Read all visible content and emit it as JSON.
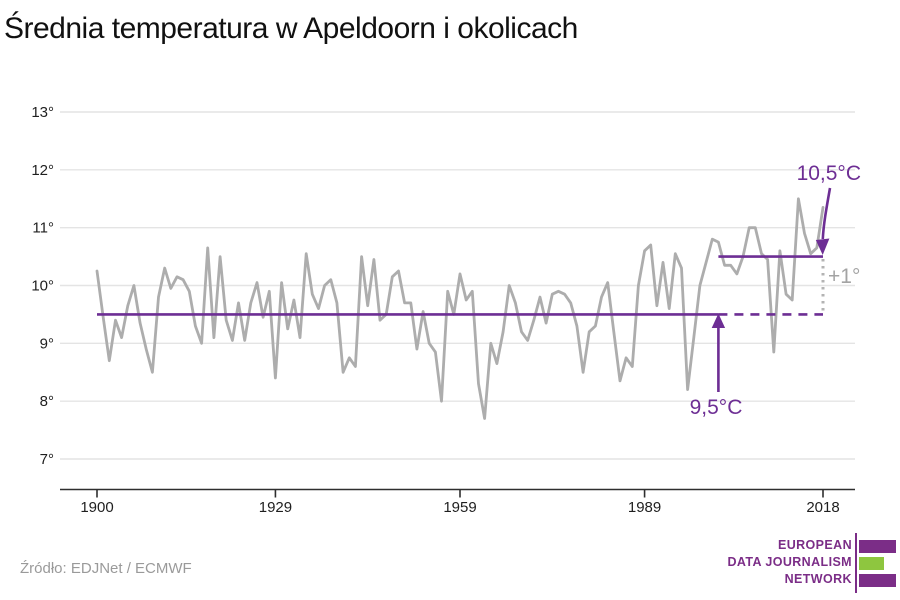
{
  "title": "Średnia temperatura w Apeldoorn i okolicach",
  "source": "Źródło: EDJNet / ECMWF",
  "annotations": {
    "avg_recent_label": "10,5°C",
    "avg_past_label": "9,5°C",
    "delta_label": "+1°"
  },
  "logo": {
    "line1": "EUROPEAN",
    "line2": "DATA JOURNALISM",
    "line3": "NETWORK"
  },
  "colors": {
    "purple": "#6d2e94",
    "series_gray": "#adadad",
    "dotted_gray": "#b3b3b3",
    "annotation_gray": "#a3a3a3",
    "grid": "#e4e4e4",
    "axis": "#2e2e2e",
    "tick_text": "#1f1f1f",
    "logo_purple": "#7b2d87",
    "logo_green": "#8ec63f"
  },
  "chart_data": {
    "type": "line",
    "title": "Średnia temperatura w Apeldoorn i okolicach",
    "xlabel": "",
    "ylabel": "",
    "unit": "°C",
    "grid": true,
    "legend": false,
    "ylim": [
      7,
      13
    ],
    "xlim": [
      1900,
      2018
    ],
    "ytick_values": [
      13,
      12,
      11,
      10,
      9,
      8,
      7
    ],
    "ytick_labels": [
      "13°",
      "12°",
      "11°",
      "10°",
      "9°",
      "8°",
      "7°"
    ],
    "xtick_values": [
      1900,
      1929,
      1959,
      1989,
      2018
    ],
    "xtick_labels": [
      "1900",
      "1929",
      "1959",
      "1989",
      "2018"
    ],
    "start_year": 1900,
    "end_year": 2018,
    "values": [
      10.25,
      9.45,
      8.7,
      9.4,
      9.1,
      9.65,
      10.0,
      9.35,
      8.9,
      8.5,
      9.8,
      10.3,
      9.95,
      10.15,
      10.1,
      9.9,
      9.3,
      9.0,
      10.65,
      9.1,
      10.5,
      9.4,
      9.05,
      9.7,
      9.05,
      9.7,
      10.05,
      9.45,
      9.9,
      8.4,
      10.05,
      9.25,
      9.75,
      9.1,
      10.55,
      9.85,
      9.6,
      10.0,
      10.1,
      9.7,
      8.5,
      8.75,
      8.6,
      10.5,
      9.65,
      10.45,
      9.4,
      9.5,
      10.15,
      10.25,
      9.7,
      9.7,
      8.9,
      9.55,
      9.0,
      8.85,
      8.0,
      9.9,
      9.5,
      10.2,
      9.75,
      9.9,
      8.3,
      7.7,
      9.0,
      8.65,
      9.2,
      10.0,
      9.7,
      9.2,
      9.05,
      9.4,
      9.8,
      9.35,
      9.85,
      9.9,
      9.85,
      9.7,
      9.3,
      8.5,
      9.2,
      9.3,
      9.8,
      10.05,
      9.2,
      8.35,
      8.75,
      8.6,
      10.0,
      10.6,
      10.7,
      9.65,
      10.4,
      9.6,
      10.55,
      10.3,
      8.2,
      9.1,
      10.0,
      10.4,
      10.8,
      10.75,
      10.35,
      10.35,
      10.2,
      10.5,
      11.0,
      11.0,
      10.55,
      10.45,
      8.85,
      10.6,
      9.85,
      9.75,
      11.5,
      10.9,
      10.55,
      10.65,
      11.35
    ],
    "baselines": [
      {
        "name": "past-average-solid",
        "value": 9.5,
        "x_from": 1900,
        "x_to": 2001,
        "style": "solid",
        "label": "9,5°C"
      },
      {
        "name": "past-average-dashed",
        "value": 9.5,
        "x_from": 2001,
        "x_to": 2018,
        "style": "dashed",
        "label": ""
      },
      {
        "name": "recent-average-solid",
        "value": 10.5,
        "x_from": 2001,
        "x_to": 2018,
        "style": "solid",
        "label": "10,5°C"
      }
    ],
    "delta_annotation": {
      "label": "+1°",
      "at_year": 2018,
      "from_value": 9.5,
      "to_value": 10.5
    }
  }
}
